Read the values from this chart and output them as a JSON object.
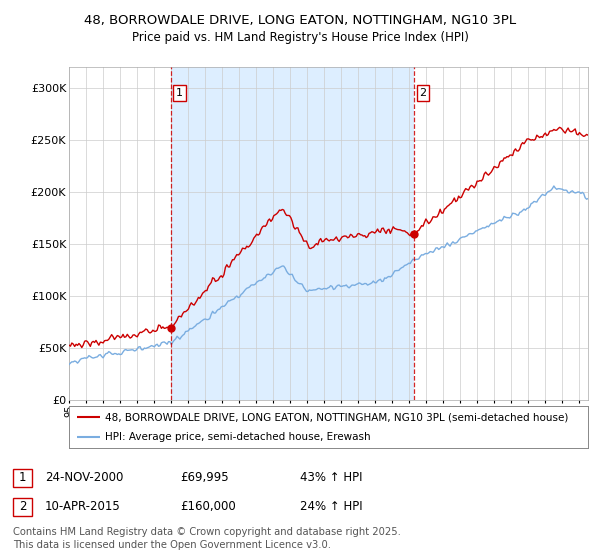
{
  "title_line1": "48, BORROWDALE DRIVE, LONG EATON, NOTTINGHAM, NG10 3PL",
  "title_line2": "Price paid vs. HM Land Registry's House Price Index (HPI)",
  "red_label": "48, BORROWDALE DRIVE, LONG EATON, NOTTINGHAM, NG10 3PL (semi-detached house)",
  "blue_label": "HPI: Average price, semi-detached house, Erewash",
  "purchase1_date": "24-NOV-2000",
  "purchase1_price": "£69,995",
  "purchase1_hpi": "43% ↑ HPI",
  "purchase2_date": "10-APR-2015",
  "purchase2_price": "£160,000",
  "purchase2_hpi": "24% ↑ HPI",
  "purchase1_year": 2001.0,
  "purchase2_year": 2015.3,
  "purchase1_price_val": 69995,
  "purchase2_price_val": 160000,
  "red_color": "#cc0000",
  "blue_color": "#7aade0",
  "shade_color": "#ddeeff",
  "vline_color": "#cc0000",
  "bg_color": "#ffffff",
  "grid_color": "#cccccc",
  "xmin": 1995,
  "xmax": 2025.5,
  "ymin": 0,
  "ymax": 320000,
  "copyright_text": "Contains HM Land Registry data © Crown copyright and database right 2025.\nThis data is licensed under the Open Government Licence v3.0."
}
